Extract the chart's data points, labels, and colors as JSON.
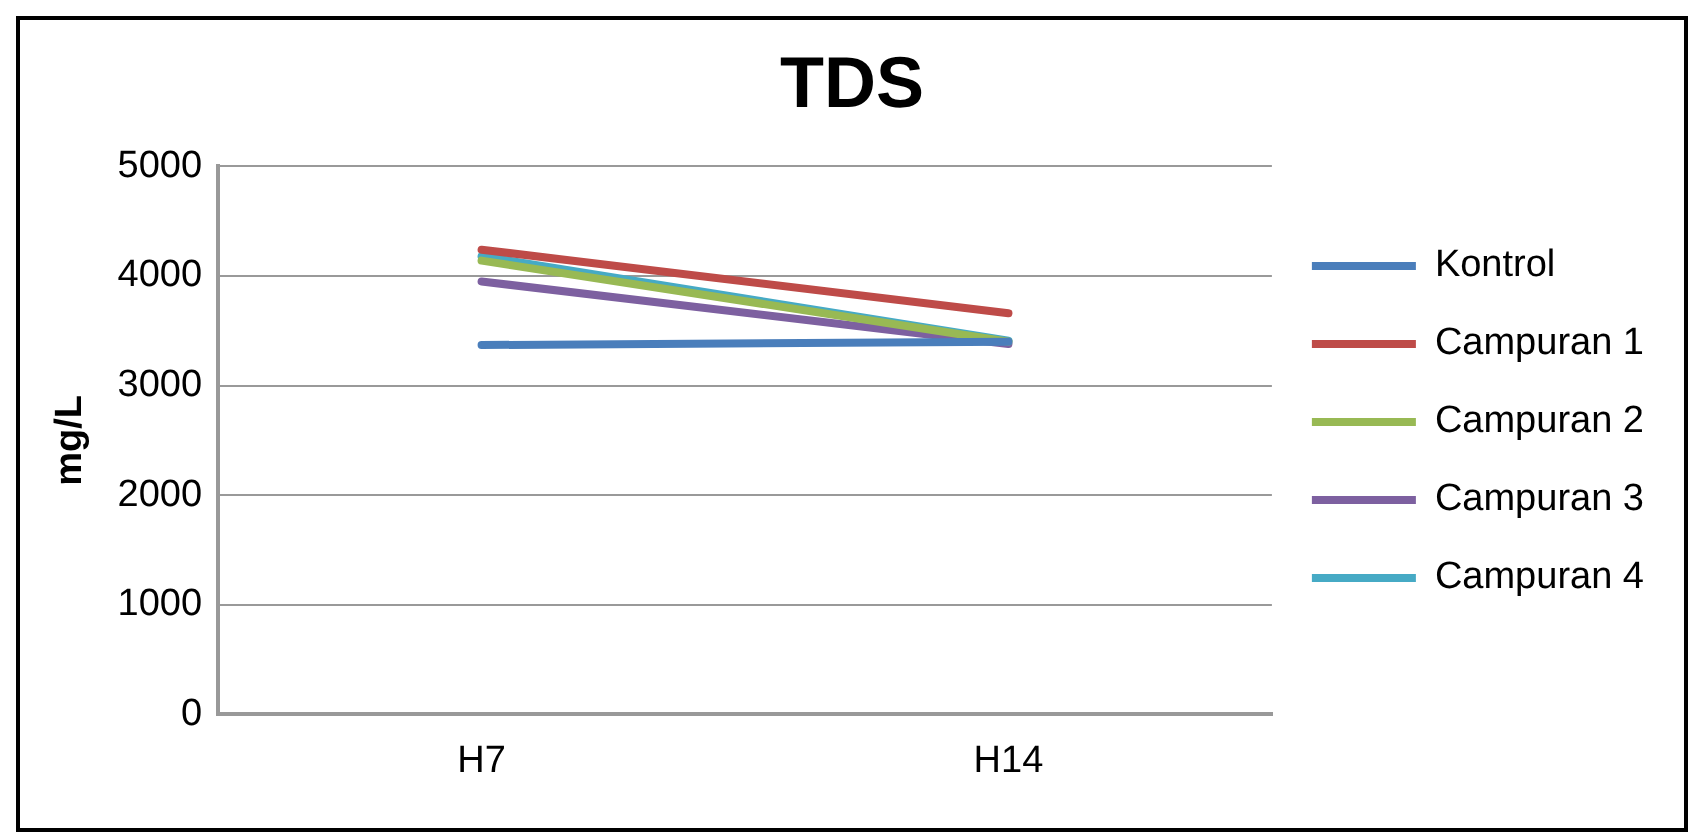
{
  "chart_data": {
    "type": "line",
    "title": "TDS",
    "ylabel": "mg/L",
    "categories": [
      "H7",
      "H14"
    ],
    "series": [
      {
        "name": "Kontrol",
        "color": "#4a7ebb",
        "values": [
          3370,
          3400
        ]
      },
      {
        "name": "Campuran 1",
        "color": "#be4b48",
        "values": [
          4240,
          3660
        ]
      },
      {
        "name": "Campuran 2",
        "color": "#98b954",
        "values": [
          4140,
          3400
        ]
      },
      {
        "name": "Campuran 3",
        "color": "#7d60a0",
        "values": [
          3950,
          3380
        ]
      },
      {
        "name": "Campuran 4",
        "color": "#46aac5",
        "values": [
          4180,
          3410
        ]
      }
    ],
    "ylim": [
      0,
      5000
    ],
    "yticks": [
      0,
      1000,
      2000,
      3000,
      4000,
      5000
    ],
    "grid": "y",
    "legend": "right",
    "marker": "none",
    "line_style": "solid"
  }
}
